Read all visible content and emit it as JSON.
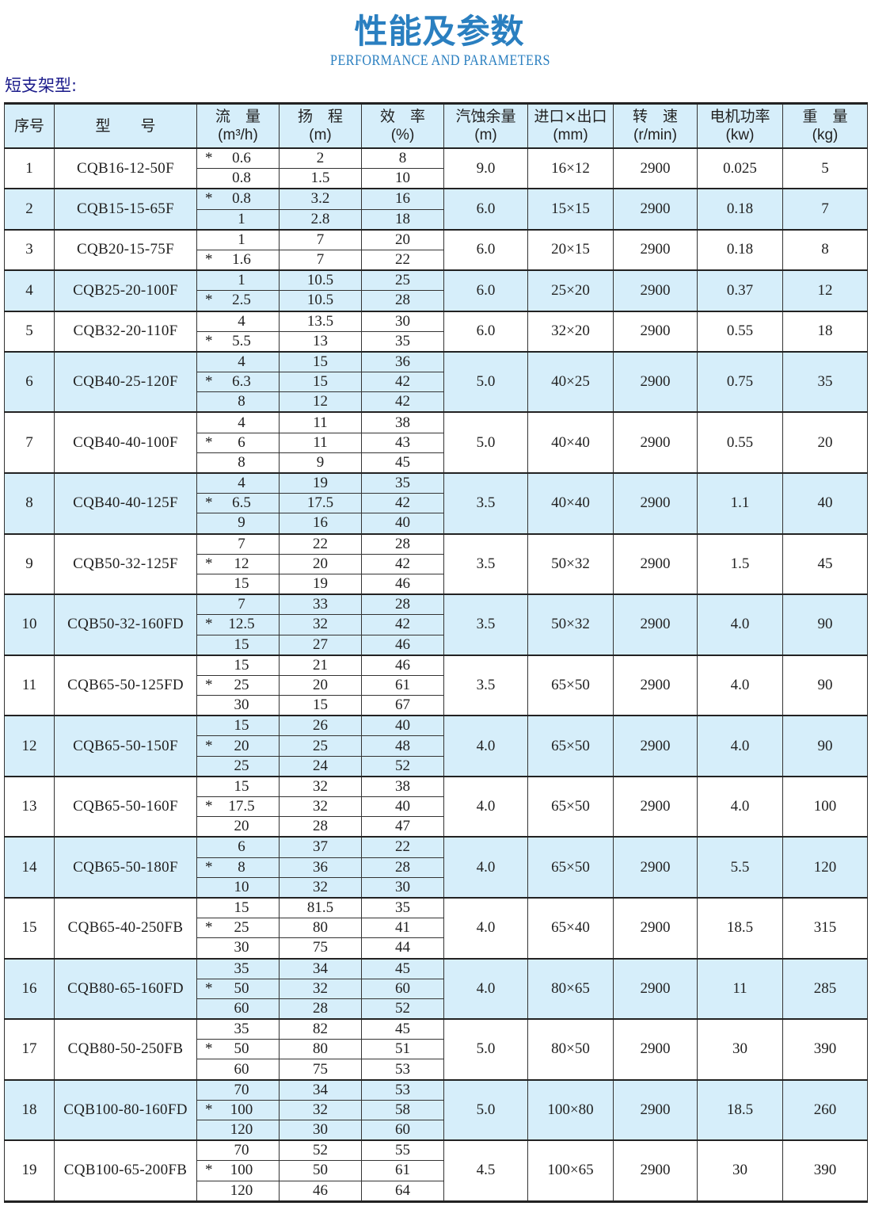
{
  "title": "性能及参数",
  "subtitle": "PERFORMANCE AND PARAMETERS",
  "section": "短支架型:",
  "colors": {
    "title": "#2a7fc0",
    "section": "#1a1a8a",
    "row_highlight": "#d6eefa"
  },
  "headers": [
    {
      "label": "序号",
      "unit": ""
    },
    {
      "label": "型　　号",
      "unit": ""
    },
    {
      "label": "流　量",
      "unit": "(m³/h)"
    },
    {
      "label": "扬　程",
      "unit": "(m)"
    },
    {
      "label": "效　率",
      "unit": "(%)"
    },
    {
      "label": "汽蚀余量",
      "unit": "(m)"
    },
    {
      "label": "进口×出口",
      "unit": "(mm)"
    },
    {
      "label": "转　速",
      "unit": "(r/min)"
    },
    {
      "label": "电机功率",
      "unit": "(kw)"
    },
    {
      "label": "重　量",
      "unit": "(kg)"
    }
  ],
  "rows": [
    {
      "no": "1",
      "model": "CQB16-12-50F",
      "points": [
        {
          "star": "*",
          "flow": "0.6",
          "head": "2",
          "eff": "8"
        },
        {
          "star": "",
          "flow": "0.8",
          "head": "1.5",
          "eff": "10"
        }
      ],
      "npsh": "9.0",
      "ports": "16×12",
      "speed": "2900",
      "power": "0.025",
      "weight": "5"
    },
    {
      "no": "2",
      "model": "CQB15-15-65F",
      "points": [
        {
          "star": "*",
          "flow": "0.8",
          "head": "3.2",
          "eff": "16"
        },
        {
          "star": "",
          "flow": "1",
          "head": "2.8",
          "eff": "18"
        }
      ],
      "npsh": "6.0",
      "ports": "15×15",
      "speed": "2900",
      "power": "0.18",
      "weight": "7"
    },
    {
      "no": "3",
      "model": "CQB20-15-75F",
      "points": [
        {
          "star": "",
          "flow": "1",
          "head": "7",
          "eff": "20"
        },
        {
          "star": "*",
          "flow": "1.6",
          "head": "7",
          "eff": "22"
        }
      ],
      "npsh": "6.0",
      "ports": "20×15",
      "speed": "2900",
      "power": "0.18",
      "weight": "8"
    },
    {
      "no": "4",
      "model": "CQB25-20-100F",
      "points": [
        {
          "star": "",
          "flow": "1",
          "head": "10.5",
          "eff": "25"
        },
        {
          "star": "*",
          "flow": "2.5",
          "head": "10.5",
          "eff": "28"
        }
      ],
      "npsh": "6.0",
      "ports": "25×20",
      "speed": "2900",
      "power": "0.37",
      "weight": "12"
    },
    {
      "no": "5",
      "model": "CQB32-20-110F",
      "points": [
        {
          "star": "",
          "flow": "4",
          "head": "13.5",
          "eff": "30"
        },
        {
          "star": "*",
          "flow": "5.5",
          "head": "13",
          "eff": "35"
        }
      ],
      "npsh": "6.0",
      "ports": "32×20",
      "speed": "2900",
      "power": "0.55",
      "weight": "18"
    },
    {
      "no": "6",
      "model": "CQB40-25-120F",
      "points": [
        {
          "star": "",
          "flow": "4",
          "head": "15",
          "eff": "36"
        },
        {
          "star": "*",
          "flow": "6.3",
          "head": "15",
          "eff": "42"
        },
        {
          "star": "",
          "flow": "8",
          "head": "12",
          "eff": "42"
        }
      ],
      "npsh": "5.0",
      "ports": "40×25",
      "speed": "2900",
      "power": "0.75",
      "weight": "35"
    },
    {
      "no": "7",
      "model": "CQB40-40-100F",
      "points": [
        {
          "star": "",
          "flow": "4",
          "head": "11",
          "eff": "38"
        },
        {
          "star": "*",
          "flow": "6",
          "head": "11",
          "eff": "43"
        },
        {
          "star": "",
          "flow": "8",
          "head": "9",
          "eff": "45"
        }
      ],
      "npsh": "5.0",
      "ports": "40×40",
      "speed": "2900",
      "power": "0.55",
      "weight": "20"
    },
    {
      "no": "8",
      "model": "CQB40-40-125F",
      "points": [
        {
          "star": "",
          "flow": "4",
          "head": "19",
          "eff": "35"
        },
        {
          "star": "*",
          "flow": "6.5",
          "head": "17.5",
          "eff": "42"
        },
        {
          "star": "",
          "flow": "9",
          "head": "16",
          "eff": "40"
        }
      ],
      "npsh": "3.5",
      "ports": "40×40",
      "speed": "2900",
      "power": "1.1",
      "weight": "40"
    },
    {
      "no": "9",
      "model": "CQB50-32-125F",
      "points": [
        {
          "star": "",
          "flow": "7",
          "head": "22",
          "eff": "28"
        },
        {
          "star": "*",
          "flow": "12",
          "head": "20",
          "eff": "42"
        },
        {
          "star": "",
          "flow": "15",
          "head": "19",
          "eff": "46"
        }
      ],
      "npsh": "3.5",
      "ports": "50×32",
      "speed": "2900",
      "power": "1.5",
      "weight": "45"
    },
    {
      "no": "10",
      "model": "CQB50-32-160FD",
      "points": [
        {
          "star": "",
          "flow": "7",
          "head": "33",
          "eff": "28"
        },
        {
          "star": "*",
          "flow": "12.5",
          "head": "32",
          "eff": "42"
        },
        {
          "star": "",
          "flow": "15",
          "head": "27",
          "eff": "46"
        }
      ],
      "npsh": "3.5",
      "ports": "50×32",
      "speed": "2900",
      "power": "4.0",
      "weight": "90"
    },
    {
      "no": "11",
      "model": "CQB65-50-125FD",
      "points": [
        {
          "star": "",
          "flow": "15",
          "head": "21",
          "eff": "46"
        },
        {
          "star": "*",
          "flow": "25",
          "head": "20",
          "eff": "61"
        },
        {
          "star": "",
          "flow": "30",
          "head": "15",
          "eff": "67"
        }
      ],
      "npsh": "3.5",
      "ports": "65×50",
      "speed": "2900",
      "power": "4.0",
      "weight": "90"
    },
    {
      "no": "12",
      "model": "CQB65-50-150F",
      "points": [
        {
          "star": "",
          "flow": "15",
          "head": "26",
          "eff": "40"
        },
        {
          "star": "*",
          "flow": "20",
          "head": "25",
          "eff": "48"
        },
        {
          "star": "",
          "flow": "25",
          "head": "24",
          "eff": "52"
        }
      ],
      "npsh": "4.0",
      "ports": "65×50",
      "speed": "2900",
      "power": "4.0",
      "weight": "90"
    },
    {
      "no": "13",
      "model": "CQB65-50-160F",
      "points": [
        {
          "star": "",
          "flow": "15",
          "head": "32",
          "eff": "38"
        },
        {
          "star": "*",
          "flow": "17.5",
          "head": "32",
          "eff": "40"
        },
        {
          "star": "",
          "flow": "20",
          "head": "28",
          "eff": "47"
        }
      ],
      "npsh": "4.0",
      "ports": "65×50",
      "speed": "2900",
      "power": "4.0",
      "weight": "100"
    },
    {
      "no": "14",
      "model": "CQB65-50-180F",
      "points": [
        {
          "star": "",
          "flow": "6",
          "head": "37",
          "eff": "22"
        },
        {
          "star": "*",
          "flow": "8",
          "head": "36",
          "eff": "28"
        },
        {
          "star": "",
          "flow": "10",
          "head": "32",
          "eff": "30"
        }
      ],
      "npsh": "4.0",
      "ports": "65×50",
      "speed": "2900",
      "power": "5.5",
      "weight": "120"
    },
    {
      "no": "15",
      "model": "CQB65-40-250FB",
      "points": [
        {
          "star": "",
          "flow": "15",
          "head": "81.5",
          "eff": "35"
        },
        {
          "star": "*",
          "flow": "25",
          "head": "80",
          "eff": "41"
        },
        {
          "star": "",
          "flow": "30",
          "head": "75",
          "eff": "44"
        }
      ],
      "npsh": "4.0",
      "ports": "65×40",
      "speed": "2900",
      "power": "18.5",
      "weight": "315"
    },
    {
      "no": "16",
      "model": "CQB80-65-160FD",
      "points": [
        {
          "star": "",
          "flow": "35",
          "head": "34",
          "eff": "45"
        },
        {
          "star": "*",
          "flow": "50",
          "head": "32",
          "eff": "60"
        },
        {
          "star": "",
          "flow": "60",
          "head": "28",
          "eff": "52"
        }
      ],
      "npsh": "4.0",
      "ports": "80×65",
      "speed": "2900",
      "power": "11",
      "weight": "285"
    },
    {
      "no": "17",
      "model": "CQB80-50-250FB",
      "points": [
        {
          "star": "",
          "flow": "35",
          "head": "82",
          "eff": "45"
        },
        {
          "star": "*",
          "flow": "50",
          "head": "80",
          "eff": "51"
        },
        {
          "star": "",
          "flow": "60",
          "head": "75",
          "eff": "53"
        }
      ],
      "npsh": "5.0",
      "ports": "80×50",
      "speed": "2900",
      "power": "30",
      "weight": "390"
    },
    {
      "no": "18",
      "model": "CQB100-80-160FD",
      "points": [
        {
          "star": "",
          "flow": "70",
          "head": "34",
          "eff": "53"
        },
        {
          "star": "*",
          "flow": "100",
          "head": "32",
          "eff": "58"
        },
        {
          "star": "",
          "flow": "120",
          "head": "30",
          "eff": "60"
        }
      ],
      "npsh": "5.0",
      "ports": "100×80",
      "speed": "2900",
      "power": "18.5",
      "weight": "260"
    },
    {
      "no": "19",
      "model": "CQB100-65-200FB",
      "points": [
        {
          "star": "",
          "flow": "70",
          "head": "52",
          "eff": "55"
        },
        {
          "star": "*",
          "flow": "100",
          "head": "50",
          "eff": "61"
        },
        {
          "star": "",
          "flow": "120",
          "head": "46",
          "eff": "64"
        }
      ],
      "npsh": "4.5",
      "ports": "100×65",
      "speed": "2900",
      "power": "30",
      "weight": "390"
    }
  ]
}
